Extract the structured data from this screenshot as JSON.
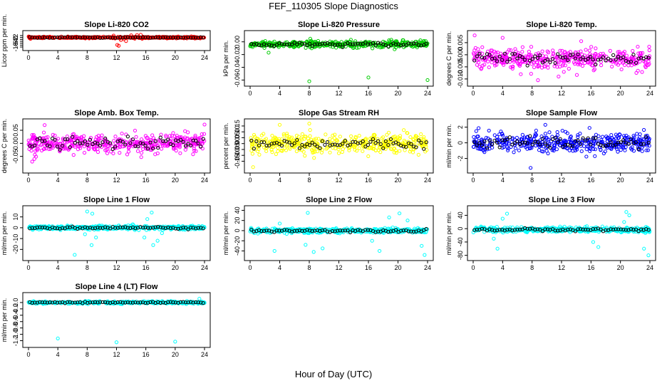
{
  "figure": {
    "title": "FEF_110305  Slope Diagnostics",
    "xlabel": "Hour of Day (UTC)"
  },
  "chart_data": [
    {
      "type": "scatter",
      "title": "Slope Li-820 CO2",
      "ylabel": "Licor ppm per min.",
      "xlim": [
        0,
        24
      ],
      "ylim": [
        -10,
        3.5
      ],
      "xticks": [
        0,
        4,
        8,
        12,
        16,
        20,
        24
      ],
      "yticks": [
        2,
        0,
        -2,
        -4,
        -6,
        -8,
        -10
      ],
      "ytick_labels": [
        "2",
        "0",
        "-2",
        "-4",
        "-6",
        "-8",
        "-10"
      ],
      "color": "#ff0000",
      "secondary_color": "#000000",
      "spread": 0.9,
      "outliers": [
        [
          12.1,
          -7.8
        ],
        [
          12.3,
          -8.7
        ],
        [
          13.3,
          -3.7
        ],
        [
          15.5,
          -1.3
        ],
        [
          14.0,
          2.3
        ],
        [
          14.8,
          2.6
        ],
        [
          15.3,
          2.9
        ],
        [
          13.0,
          -1.8
        ],
        [
          12.6,
          -2.6
        ],
        [
          11.6,
          2.0
        ]
      ]
    },
    {
      "type": "scatter",
      "title": "Slope Li-820 Pressure",
      "ylabel": "kPa per min.",
      "xlim": [
        0,
        24
      ],
      "ylim": [
        -0.064,
        0.012
      ],
      "xticks": [
        0,
        4,
        8,
        12,
        16,
        20,
        24
      ],
      "yticks": [
        0,
        -0.02,
        -0.04,
        -0.06
      ],
      "ytick_labels": [
        "0.00",
        "-0.02",
        "-0.04",
        "-0.06"
      ],
      "color": "#00cc00",
      "secondary_color": "#000000",
      "spread": 0.006,
      "center": -0.004,
      "outliers": [
        [
          8.0,
          -0.062
        ],
        [
          16.0,
          -0.056
        ],
        [
          24.0,
          -0.06
        ],
        [
          2.5,
          -0.017
        ]
      ]
    },
    {
      "type": "scatter",
      "title": "Slope Li-820 Temp.",
      "ylabel": "degrees C per min.",
      "xlim": [
        0,
        24
      ],
      "ylim": [
        -0.0115,
        0.0085
      ],
      "xticks": [
        0,
        4,
        8,
        12,
        16,
        20,
        24
      ],
      "yticks": [
        0.005,
        0,
        -0.005,
        -0.01
      ],
      "ytick_labels": [
        "0.005",
        "0.000",
        "-0.005",
        "-0.010"
      ],
      "color": "#ff00ff",
      "secondary_color": "#000000",
      "spread": 0.0045,
      "center": -0.0015,
      "outliers": [
        [
          0.2,
          0.008
        ],
        [
          8.8,
          -0.0105
        ],
        [
          4.0,
          0.007
        ],
        [
          11.6,
          -0.009
        ]
      ]
    },
    {
      "type": "scatter",
      "title": "Slope Amb. Box Temp.",
      "ylabel": "degrees C per min.",
      "xlim": [
        0,
        24
      ],
      "ylim": [
        -0.1,
        0.08
      ],
      "xticks": [
        0,
        4,
        8,
        12,
        16,
        20,
        24
      ],
      "yticks": [
        0.05,
        0,
        -0.05
      ],
      "ytick_labels": [
        "0.05",
        "0.00",
        "-0.05"
      ],
      "color": "#ff00ff",
      "secondary_color": "#000000",
      "spread": 0.04,
      "center": 0.0,
      "outliers": [
        [
          24.0,
          0.072
        ],
        [
          0.5,
          -0.07
        ],
        [
          2.2,
          0.07
        ]
      ]
    },
    {
      "type": "scatter",
      "title": "Slope Gas Stream RH",
      "ylabel": "percent per min.",
      "xlim": [
        0,
        24
      ],
      "ylim": [
        -0.22,
        0.18
      ],
      "xticks": [
        0,
        4,
        8,
        12,
        16,
        20,
        24
      ],
      "yticks": [
        0.15,
        0.1,
        0.05,
        0,
        -0.05,
        -0.1,
        -0.15
      ],
      "ytick_labels": [
        "0.15",
        "0.10",
        "0.05",
        "0.00",
        "-0.05",
        "-0.10",
        "-0.15"
      ],
      "color": "#ffff00",
      "secondary_color": "#000000",
      "spread": 0.09,
      "center": 0.0,
      "outliers": [
        [
          0.4,
          -0.2
        ],
        [
          8.0,
          0.17
        ],
        [
          4.0,
          0.16
        ]
      ]
    },
    {
      "type": "scatter",
      "title": "Slope Sample Flow",
      "ylabel": "ml/min per min.",
      "xlim": [
        0,
        24
      ],
      "ylim": [
        -3.4,
        2.6
      ],
      "xticks": [
        0,
        4,
        8,
        12,
        16,
        20,
        24
      ],
      "yticks": [
        2,
        0,
        -2
      ],
      "ytick_labels": [
        "2",
        "0",
        "-2"
      ],
      "color": "#0000ff",
      "secondary_color": "#000000",
      "spread": 1.4,
      "center": 0.0,
      "outliers": [
        [
          7.8,
          -3.2
        ],
        [
          9.8,
          2.3
        ],
        [
          15.8,
          1.9
        ]
      ]
    },
    {
      "type": "scatter",
      "title": "Slope Line 1 Flow",
      "ylabel": "ml/min per min.",
      "xlim": [
        0,
        24
      ],
      "ylim": [
        -27,
        17
      ],
      "xticks": [
        0,
        4,
        8,
        12,
        16,
        20,
        24
      ],
      "yticks": [
        10,
        0,
        -10,
        -20
      ],
      "ytick_labels": [
        "10",
        "0",
        "-10",
        "-20"
      ],
      "color": "#00ffff",
      "secondary_color": "#000000",
      "spread": 2.0,
      "center": 0.0,
      "outliers": [
        [
          6.3,
          -25
        ],
        [
          8.0,
          15
        ],
        [
          8.7,
          13
        ],
        [
          7.7,
          -6
        ],
        [
          8.6,
          -16
        ],
        [
          9.2,
          -9
        ],
        [
          16.2,
          8
        ],
        [
          17.0,
          -16
        ],
        [
          17.6,
          -12
        ],
        [
          16.8,
          14
        ],
        [
          18.2,
          -5
        ],
        [
          15.8,
          -9
        ]
      ]
    },
    {
      "type": "scatter",
      "title": "Slope Line 2 Flow",
      "ylabel": "ml/min per min.",
      "xlim": [
        0,
        24
      ],
      "ylim": [
        -52,
        42
      ],
      "xticks": [
        0,
        4,
        8,
        12,
        16,
        20,
        24
      ],
      "yticks": [
        40,
        20,
        0,
        -20,
        -40
      ],
      "ytick_labels": [
        "40",
        "20",
        "0",
        "-20",
        "-40"
      ],
      "color": "#00ffff",
      "secondary_color": "#000000",
      "spread": 5.0,
      "center": 0.0,
      "outliers": [
        [
          3.3,
          -40
        ],
        [
          4.0,
          14
        ],
        [
          7.5,
          -28
        ],
        [
          7.8,
          35
        ],
        [
          8.6,
          -42
        ],
        [
          9.8,
          -35
        ],
        [
          17.5,
          -40
        ],
        [
          18.8,
          26
        ],
        [
          20.2,
          34
        ],
        [
          23.6,
          -48
        ],
        [
          23.2,
          -30
        ],
        [
          16.5,
          -20
        ],
        [
          21.3,
          20
        ]
      ]
    },
    {
      "type": "scatter",
      "title": "Slope Line 3 Flow",
      "ylabel": "ml/min per min.",
      "xlim": [
        0,
        24
      ],
      "ylim": [
        -85,
        58
      ],
      "xticks": [
        0,
        4,
        8,
        12,
        16,
        20,
        24
      ],
      "yticks": [
        40,
        0,
        -40,
        -80
      ],
      "ytick_labels": [
        "40",
        "0",
        "-40",
        "-80"
      ],
      "color": "#00ffff",
      "secondary_color": "#000000",
      "spread": 8.0,
      "center": -3.0,
      "outliers": [
        [
          3.3,
          -60
        ],
        [
          4.0,
          30
        ],
        [
          4.6,
          45
        ],
        [
          2.8,
          -30
        ],
        [
          16.3,
          -40
        ],
        [
          17.0,
          -55
        ],
        [
          20.8,
          50
        ],
        [
          21.2,
          40
        ],
        [
          23.8,
          -80
        ],
        [
          23.2,
          -60
        ],
        [
          20.5,
          20
        ]
      ]
    },
    {
      "type": "scatter",
      "title": "Slope Line 4 (LT) Flow",
      "ylabel": "ml/min per min.",
      "xlim": [
        0,
        24
      ],
      "ylim": [
        -1.3,
        0.2
      ],
      "xticks": [
        0,
        4,
        8,
        12,
        16,
        20,
        24
      ],
      "yticks": [
        0,
        -0.2,
        -0.4,
        -0.6,
        -0.8,
        -1.0,
        -1.2
      ],
      "ytick_labels": [
        "0.0",
        "-0.2",
        "-0.4",
        "-0.6",
        "-0.8",
        "-1.0",
        "-1.2"
      ],
      "color": "#00ffff",
      "secondary_color": "#000000",
      "spread": 0.04,
      "center": 0.0,
      "outliers": [
        [
          4.0,
          -1.13
        ],
        [
          12.0,
          -1.25
        ],
        [
          20.0,
          -1.23
        ],
        [
          23.3,
          0.12
        ]
      ]
    }
  ]
}
